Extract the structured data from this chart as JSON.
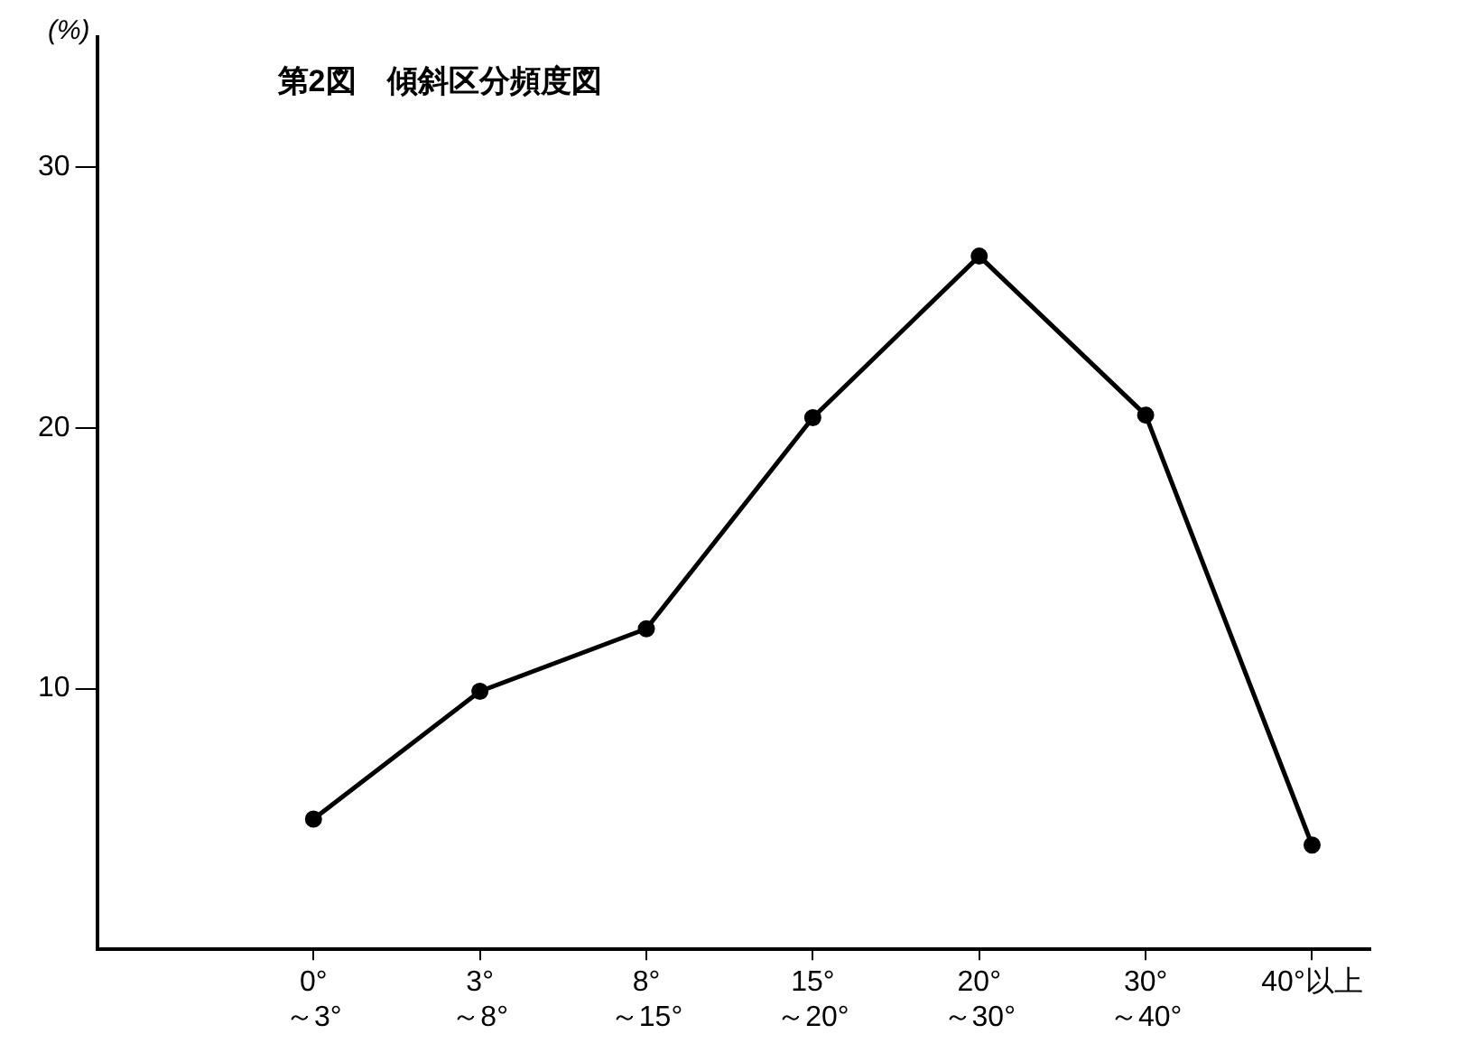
{
  "chart_data": {
    "type": "line",
    "title": "第2図　傾斜区分頻度図",
    "ylabel": "(%)",
    "categories": [
      "0°\n～3°",
      "3°\n～8°",
      "8°\n～15°",
      "15°\n～20°",
      "20°\n～30°",
      "30°\n～40°",
      "40°以上"
    ],
    "values": [
      5.0,
      9.9,
      12.3,
      20.4,
      26.6,
      20.5,
      4.0
    ],
    "color": "#000000",
    "marker": "circle",
    "line_style": "solid",
    "ylim": [
      0,
      35
    ],
    "yticks": [
      10,
      20,
      30
    ],
    "grid": false,
    "legend": false
  }
}
